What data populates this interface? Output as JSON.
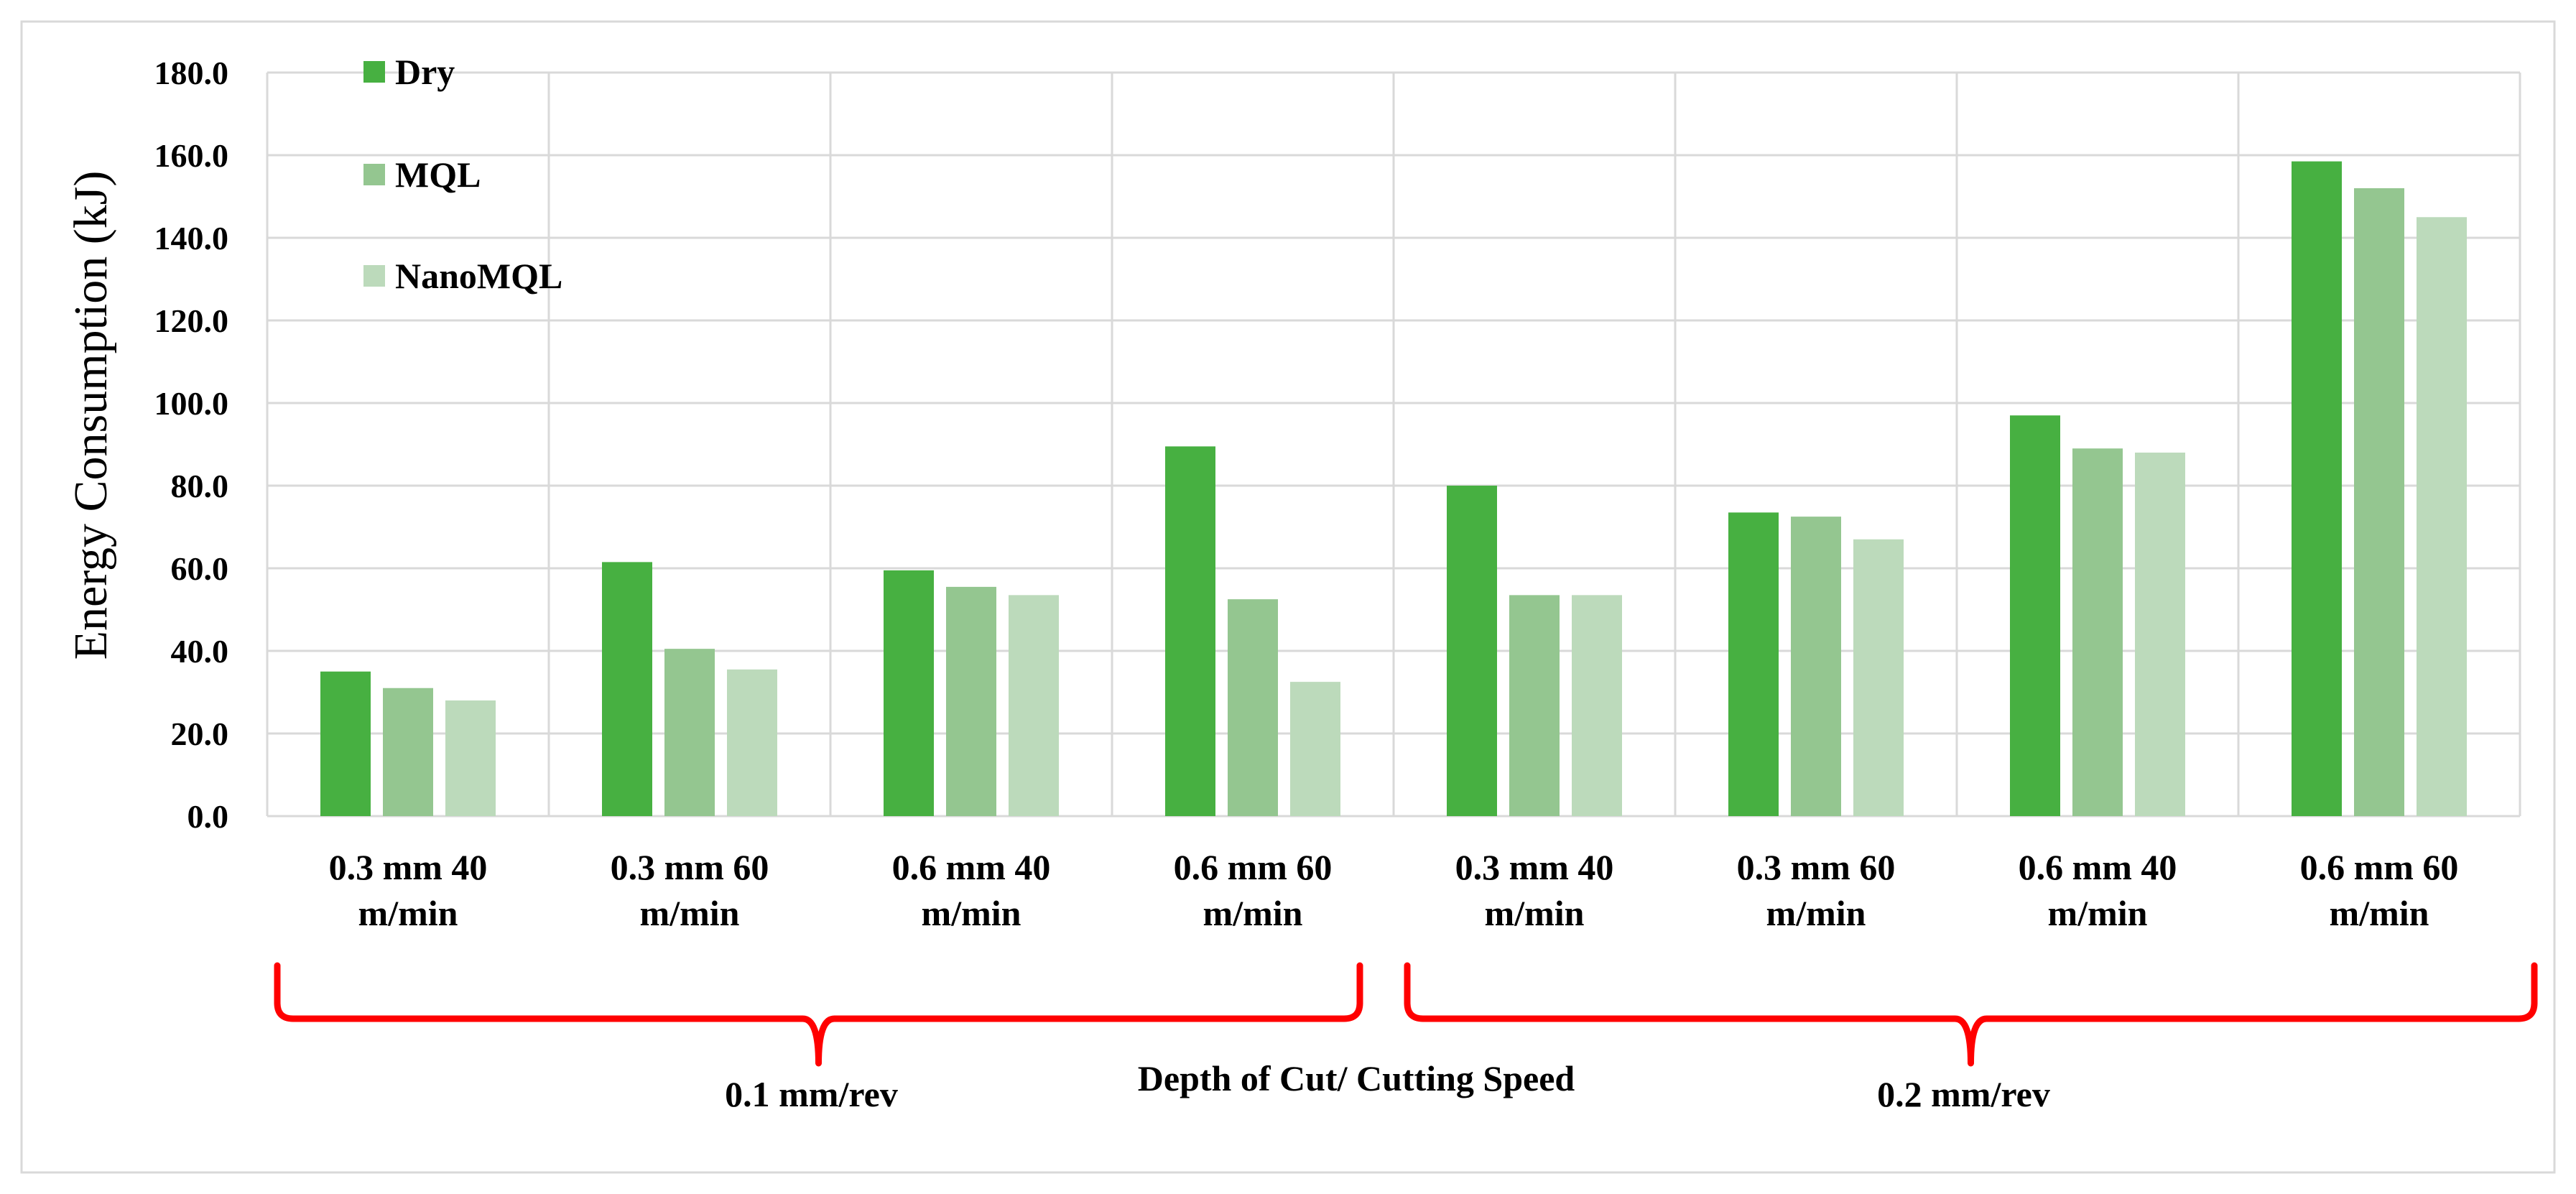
{
  "chart_data": {
    "type": "bar",
    "title": "",
    "xlabel": "Depth of Cut/ Cutting Speed",
    "ylabel": "Energy Consumption (kJ)",
    "ylim": [
      0,
      180
    ],
    "yticks": [
      "0.0",
      "20.0",
      "40.0",
      "60.0",
      "80.0",
      "100.0",
      "120.0",
      "140.0",
      "160.0",
      "180.0"
    ],
    "grid": true,
    "legend_position": "top-left",
    "categories": [
      [
        "0.3 mm 40",
        "m/min"
      ],
      [
        "0.3 mm 60",
        "m/min"
      ],
      [
        "0.6 mm 40",
        "m/min"
      ],
      [
        "0.6 mm 60",
        "m/min"
      ],
      [
        "0.3 mm 40",
        "m/min"
      ],
      [
        "0.3 mm 60",
        "m/min"
      ],
      [
        "0.6 mm 40",
        "m/min"
      ],
      [
        "0.6 mm 60",
        "m/min"
      ]
    ],
    "series": [
      {
        "name": "Dry",
        "color": "#47b041",
        "values": [
          35,
          61.5,
          59.5,
          89.5,
          80,
          73.5,
          97,
          158.5
        ]
      },
      {
        "name": "MQL",
        "color": "#94c690",
        "values": [
          31,
          40.5,
          55.5,
          52.5,
          53.5,
          72.5,
          89,
          152
        ]
      },
      {
        "name": "NanoMQL",
        "color": "#bcdabb",
        "values": [
          28,
          35.5,
          53.5,
          32.5,
          53.5,
          67,
          88,
          145
        ]
      }
    ],
    "groups": [
      {
        "label": "0.1 mm/rev",
        "categories": [
          0,
          1,
          2,
          3
        ],
        "brace_color": "#ff0000"
      },
      {
        "label": "0.2 mm/rev",
        "categories": [
          4,
          5,
          6,
          7
        ],
        "brace_color": "#ff0000"
      }
    ]
  }
}
